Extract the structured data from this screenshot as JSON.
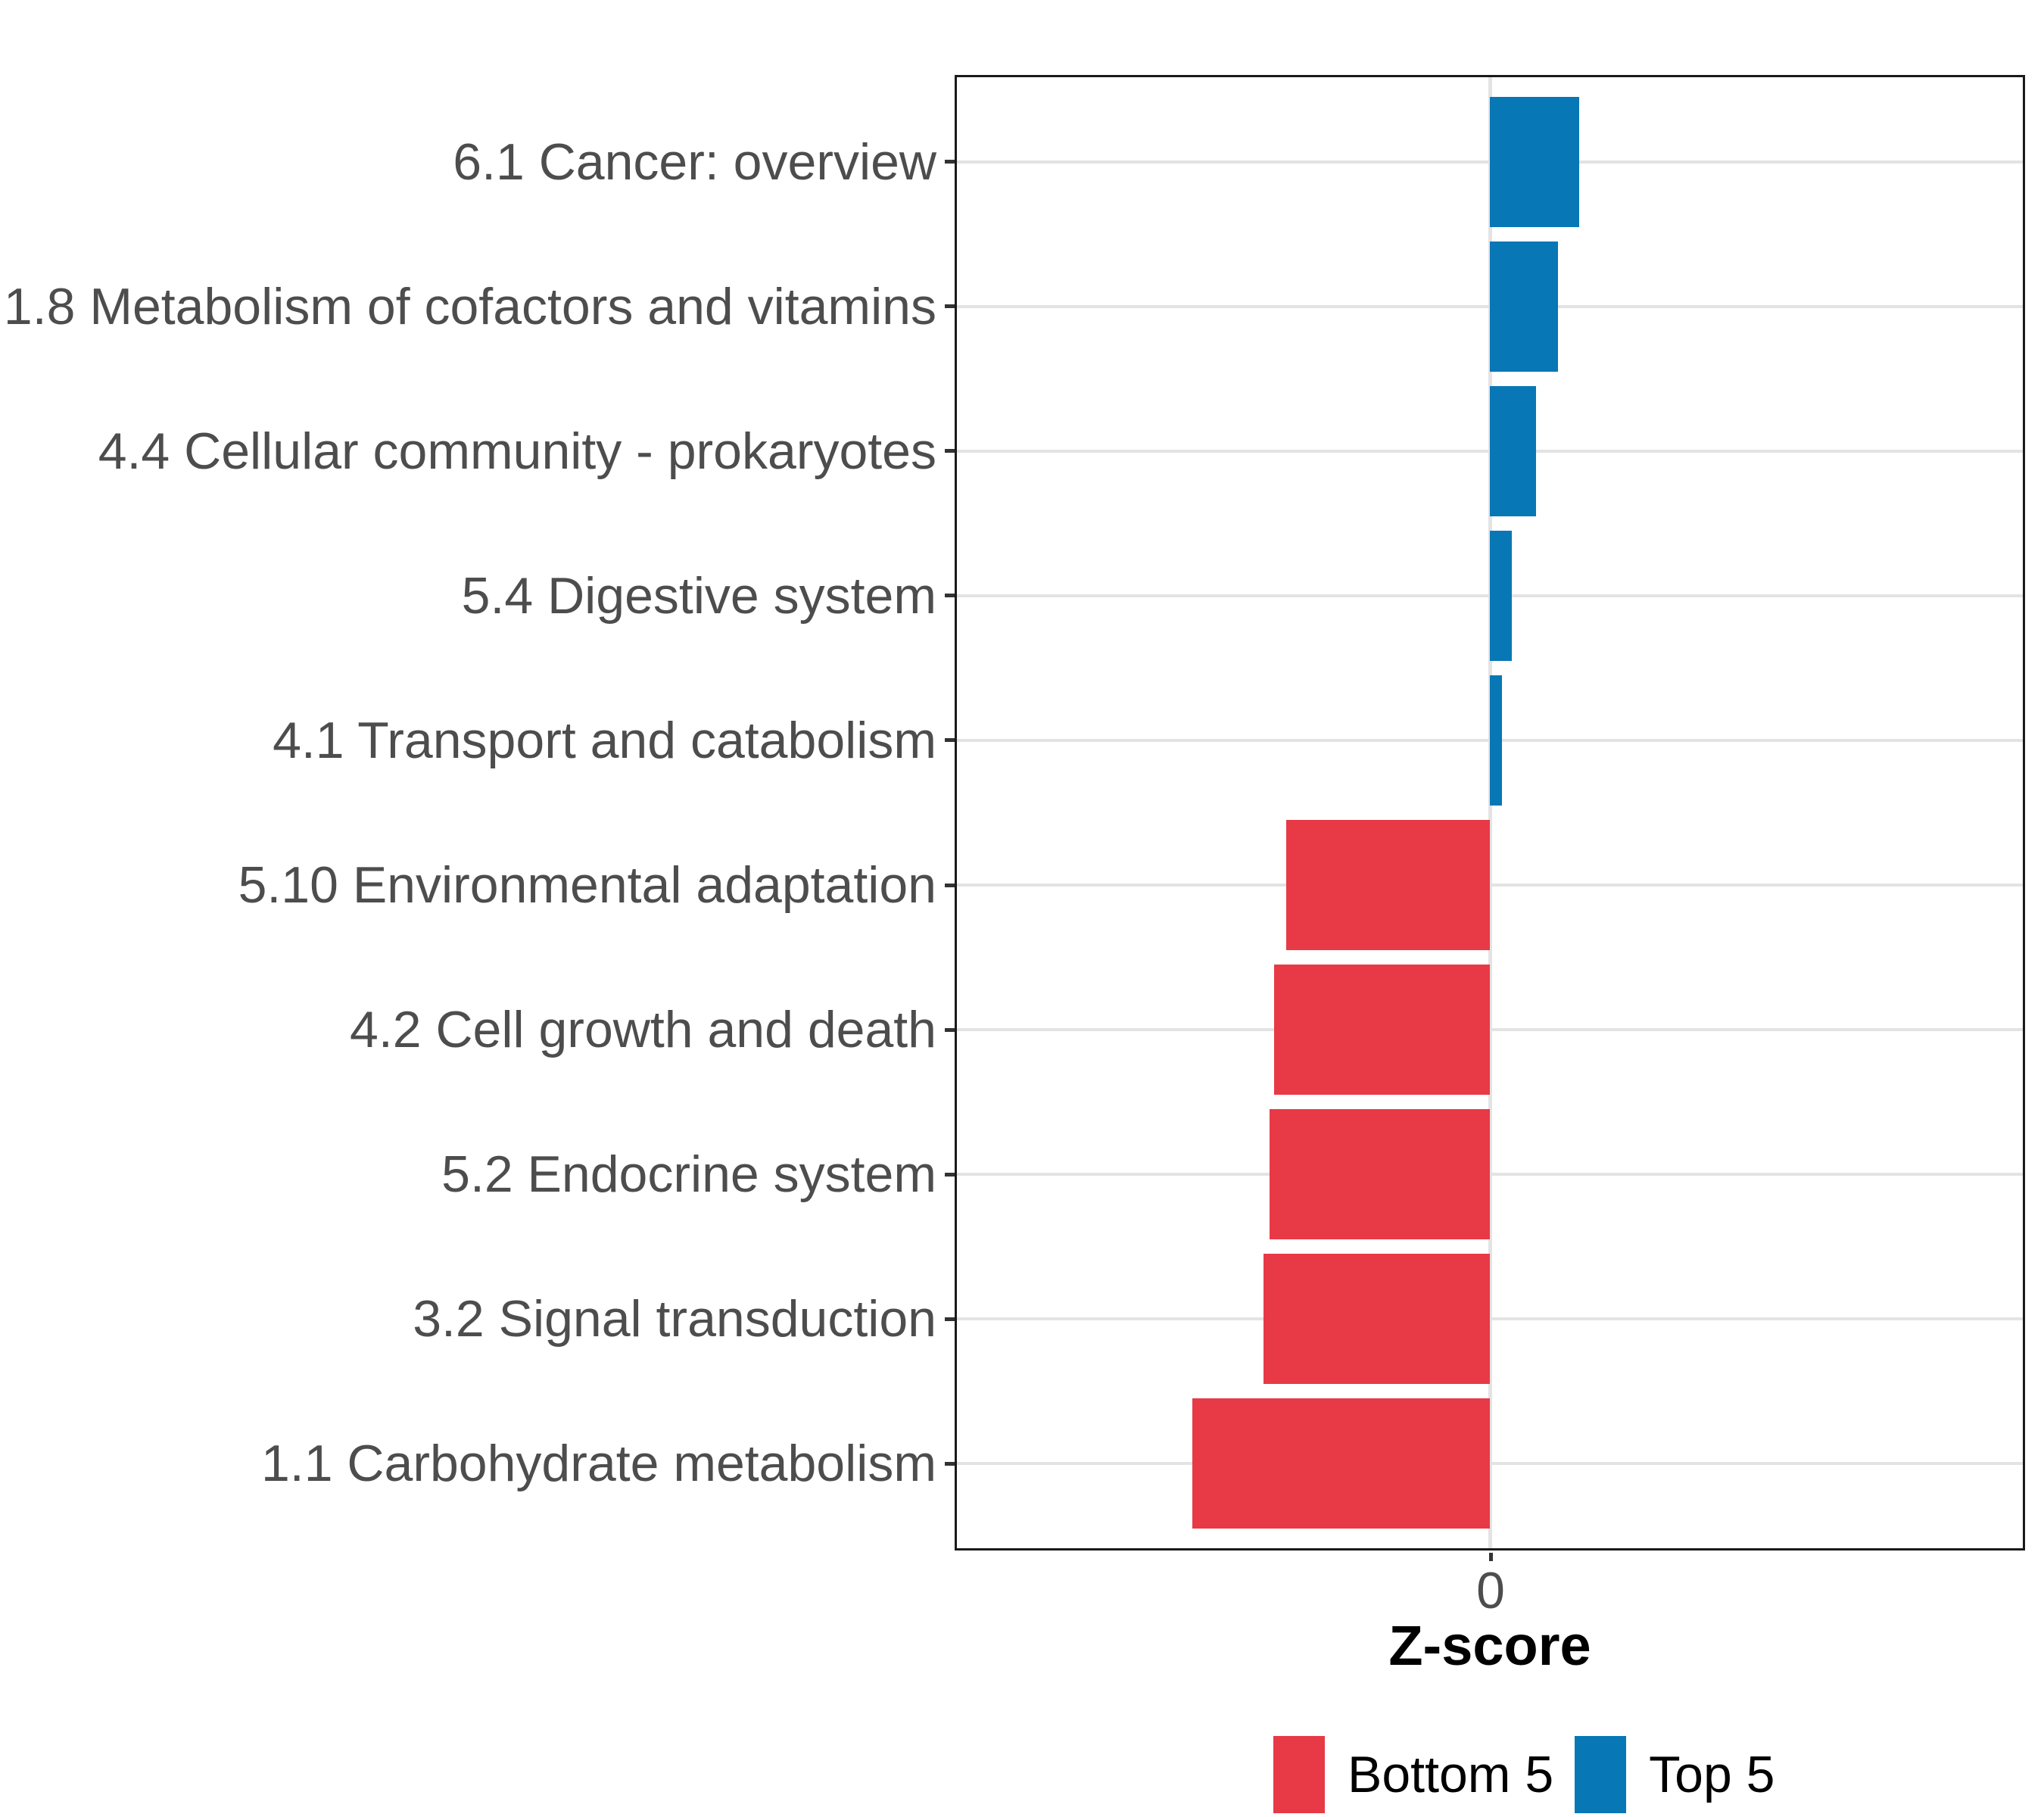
{
  "chart_data": {
    "type": "bar",
    "orientation": "horizontal",
    "title": "",
    "xlabel": "Z-score",
    "ylabel": "",
    "x_tick_label": "0",
    "xlim": [
      -3.6,
      3.6
    ],
    "grid": true,
    "legend_position": "bottom",
    "categories_top_to_bottom": [
      "6.1 Cancer: overview",
      "1.8 Metabolism of cofactors and vitamins",
      "4.4 Cellular community - prokaryotes",
      "5.4 Digestive system",
      "4.1 Transport and catabolism",
      "5.10 Environmental adaptation",
      "4.2 Cell growth and death",
      "5.2 Endocrine system",
      "3.2 Signal transduction",
      "1.1 Carbohydrate metabolism"
    ],
    "bars": [
      {
        "label": "6.1 Cancer: overview",
        "value": 0.6,
        "group": "Top 5"
      },
      {
        "label": "1.8 Metabolism of cofactors and vitamins",
        "value": 0.46,
        "group": "Top 5"
      },
      {
        "label": "4.4 Cellular community - prokaryotes",
        "value": 0.31,
        "group": "Top 5"
      },
      {
        "label": "5.4 Digestive system",
        "value": 0.15,
        "group": "Top 5"
      },
      {
        "label": "4.1 Transport and catabolism",
        "value": 0.08,
        "group": "Top 5"
      },
      {
        "label": "5.10 Environmental adaptation",
        "value": -1.37,
        "group": "Bottom 5"
      },
      {
        "label": "4.2 Cell growth and death",
        "value": -1.45,
        "group": "Bottom 5"
      },
      {
        "label": "5.2 Endocrine system",
        "value": -1.48,
        "group": "Bottom 5"
      },
      {
        "label": "3.2 Signal transduction",
        "value": -1.52,
        "group": "Bottom 5"
      },
      {
        "label": "1.1 Carbohydrate metabolism",
        "value": -2.0,
        "group": "Bottom 5"
      }
    ],
    "legend": [
      {
        "label": "Bottom 5",
        "color": "#E83946"
      },
      {
        "label": "Top 5",
        "color": "#0877B6"
      }
    ],
    "colors": {
      "bottom5": "#E83946",
      "top5": "#0877B6",
      "grid": "#E3E3E3",
      "panel_border": "#1A1A1A",
      "axis_text": "#4D4D4D",
      "tick": "#333333"
    }
  }
}
